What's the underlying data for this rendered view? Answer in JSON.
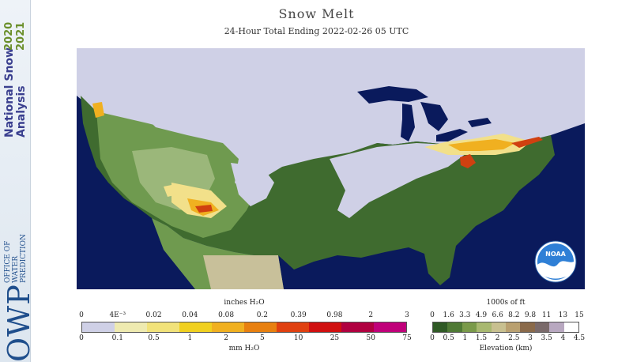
{
  "sidebar": {
    "title_line1": "National Snow",
    "title_line2": "Analysis",
    "year1": "2020",
    "year2": "2021",
    "owp_abbrev": "OWP",
    "owp_line1": "OFFICE OF",
    "owp_line2": "WATER",
    "owp_line3": "PREDICTION"
  },
  "header": {
    "title": "Snow Melt",
    "subtitle": "24-Hour Total Ending 2022-02-26 05 UTC"
  },
  "map": {
    "colors": {
      "ocean": "#0a1a5c",
      "no_melt": "#cfd0e6",
      "lowland": "#3f6b2f",
      "mid": "#6f9a4f",
      "high": "#9bb77a",
      "desert": "#c8c09a",
      "melt_low": "#f2e08a",
      "melt_mid": "#f0b020",
      "melt_high": "#d04010"
    }
  },
  "legend_melt": {
    "units_top": "inches H₂O",
    "units_bottom": "mm H₂O",
    "top_ticks": [
      "0",
      "4E⁻³",
      "0.02",
      "0.04",
      "0.08",
      "0.2",
      "0.39",
      "0.98",
      "2",
      "3"
    ],
    "bottom_ticks": [
      "0",
      "0.1",
      "0.5",
      "1",
      "2",
      "5",
      "10",
      "25",
      "50",
      "75"
    ],
    "colors": [
      "#cfd0e6",
      "#eeeab0",
      "#f1e27a",
      "#f0d020",
      "#f0b020",
      "#e88010",
      "#e04010",
      "#d01010",
      "#b00040",
      "#c0007a"
    ]
  },
  "legend_elev": {
    "units_top": "1000s of ft",
    "units_bottom": "Elevation (km)",
    "top_ticks": [
      "0",
      "1.6",
      "3.3",
      "4.9",
      "6.6",
      "8.2",
      "9.8",
      "11",
      "13",
      "15"
    ],
    "bottom_ticks": [
      "0",
      "0.5",
      "1",
      "1.5",
      "2",
      "2.5",
      "3",
      "3.5",
      "4",
      "4.5"
    ],
    "colors": [
      "#2f5a25",
      "#4f7a35",
      "#7a9a4a",
      "#a8b870",
      "#c8c090",
      "#b9a070",
      "#8a6a4a",
      "#7a6a6a",
      "#b8a8c0",
      "#ffffff"
    ]
  },
  "logo": {
    "noaa_text": "NOAA"
  }
}
